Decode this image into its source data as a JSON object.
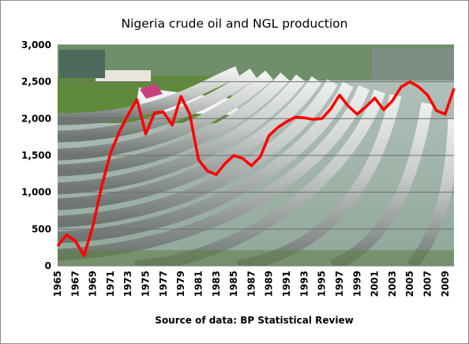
{
  "chart_data": {
    "type": "line",
    "title": "Nigeria  crude oil and NGL production",
    "source_note": "Source of data: BP Statistical Review",
    "xlabel": "",
    "ylabel": "",
    "ylim": [
      0,
      3000
    ],
    "y_ticks": [
      0,
      500,
      1000,
      1500,
      2000,
      2500,
      3000
    ],
    "y_tick_labels": [
      "0",
      "500",
      "1,000",
      "1,500",
      "2,000",
      "2,500",
      "3,000"
    ],
    "x_tick_labels": [
      "1965",
      "1967",
      "1969",
      "1971",
      "1973",
      "1975",
      "1977",
      "1979",
      "1981",
      "1983",
      "1985",
      "1987",
      "1989",
      "1991",
      "1993",
      "1995",
      "1997",
      "1999",
      "2001",
      "2003",
      "2005",
      "2007",
      "2009"
    ],
    "grid": true,
    "legend": "none",
    "line_color": "#ff0000",
    "background": "photo of oil pipelines",
    "series": [
      {
        "name": "",
        "x": [
          1965,
          1966,
          1967,
          1968,
          1969,
          1970,
          1971,
          1972,
          1973,
          1974,
          1975,
          1976,
          1977,
          1978,
          1979,
          1980,
          1981,
          1982,
          1983,
          1984,
          1985,
          1986,
          1987,
          1988,
          1989,
          1990,
          1991,
          1992,
          1993,
          1994,
          1995,
          1996,
          1997,
          1998,
          1999,
          2000,
          2001,
          2002,
          2003,
          2004,
          2005,
          2006,
          2007,
          2008,
          2009,
          2010
        ],
        "values": [
          270,
          420,
          340,
          140,
          540,
          1080,
          1530,
          1820,
          2050,
          2260,
          1790,
          2080,
          2090,
          1910,
          2300,
          2060,
          1440,
          1290,
          1240,
          1390,
          1500,
          1460,
          1360,
          1480,
          1770,
          1880,
          1960,
          2020,
          2010,
          1990,
          2000,
          2130,
          2320,
          2170,
          2060,
          2160,
          2280,
          2120,
          2240,
          2430,
          2500,
          2430,
          2320,
          2110,
          2060,
          2410
        ]
      }
    ]
  }
}
